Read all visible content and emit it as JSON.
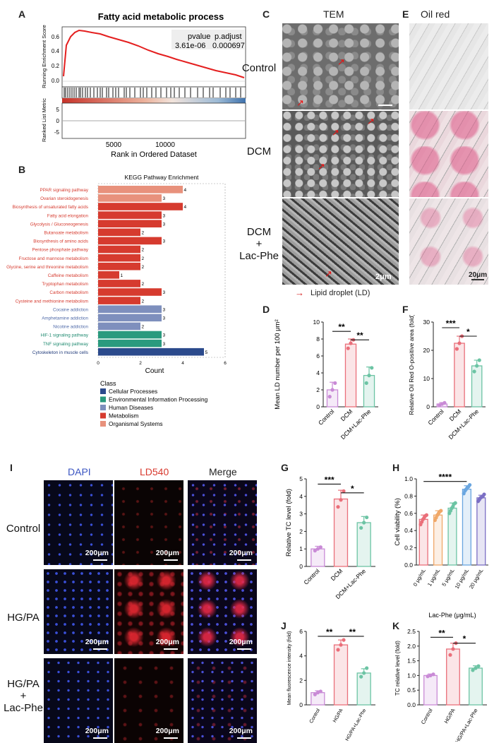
{
  "panels": {
    "A": {
      "letter": "A",
      "title": "Fatty acid metabolic process",
      "stats_header": [
        "pvalue",
        "p.adjust"
      ],
      "stats_values": [
        "3.61e-06",
        "0.000697"
      ],
      "ylabel_top": "Running Enrichment Score",
      "ylabel_bottom": "Ranked List Metric",
      "xlabel": "Rank in Ordered Dataset",
      "y_ticks_top": [
        "0.6",
        "0.4",
        "0.2",
        "0.0"
      ],
      "y_ticks_bottom": [
        "5",
        "0",
        "-5"
      ],
      "x_ticks": [
        "5000",
        "10000"
      ]
    },
    "B": {
      "letter": "B"
    },
    "C": {
      "letter": "C",
      "header": "TEM",
      "rows": [
        "Control",
        "DCM",
        "DCM",
        "+",
        "Lac-Phe"
      ],
      "scale": "2μm",
      "legend": "Lipid droplet (LD)"
    },
    "D": {
      "letter": "D"
    },
    "E": {
      "letter": "E",
      "header": "Oil red",
      "scale": "20μm"
    },
    "F": {
      "letter": "F"
    },
    "G": {
      "letter": "G"
    },
    "H": {
      "letter": "H"
    },
    "I": {
      "letter": "I",
      "headers": [
        "DAPI",
        "LD540",
        "Merge"
      ],
      "rows": [
        "Control",
        "HG/PA",
        "HG/PA",
        "+",
        "Lac-Phe"
      ],
      "scale": "200μm"
    },
    "J": {
      "letter": "J"
    },
    "K": {
      "letter": "K"
    }
  },
  "chart_data": [
    {
      "id": "B",
      "type": "bar",
      "orientation": "horizontal",
      "title": "KEGG Pathway Enrichment",
      "xlabel": "Count",
      "xlim": [
        0,
        6
      ],
      "x_ticks": [
        "0",
        "2",
        "4",
        "6"
      ],
      "categories": [
        "PPAR signaling pathway",
        "Ovarian steroidogenesis",
        "Biosynthesis of unsaturated fatty acids",
        "Fatty acid elongation",
        "Glycolysis / Gluconeogenesis",
        "Butanoate metabolism",
        "Biosynthesis of amino acids",
        "Pentose phosphate pathway",
        "Fructose and mannose metabolism",
        "Glycine, serine and threonine metabolism",
        "Caffeine metabolism",
        "Tryptophan metabolism",
        "Carbon metabolism",
        "Cysteine and methionine metabolism",
        "Cocaine addiction",
        "Amphetamine addiction",
        "Nicotine addiction",
        "HIF-1 signaling pathway",
        "TNF signaling pathway",
        "Cytoskeleton in muscle cells"
      ],
      "values": [
        4,
        3,
        4,
        3,
        3,
        2,
        3,
        2,
        2,
        2,
        1,
        2,
        3,
        2,
        3,
        3,
        2,
        3,
        3,
        5
      ],
      "value_labels": [
        "4",
        "3",
        "4",
        "3",
        "3",
        "2",
        "3",
        "2",
        "2",
        "2",
        "1",
        "2",
        "3",
        "2",
        "3",
        "3",
        "2",
        "3",
        "3",
        "5"
      ],
      "classes": [
        "Organismal Systems",
        "Organismal Systems",
        "Metabolism",
        "Metabolism",
        "Metabolism",
        "Metabolism",
        "Metabolism",
        "Metabolism",
        "Metabolism",
        "Metabolism",
        "Metabolism",
        "Metabolism",
        "Metabolism",
        "Metabolism",
        "Human Diseases",
        "Human Diseases",
        "Human Diseases",
        "Environmental Information Processing",
        "Environmental Information Processing",
        "Cellular Processes"
      ],
      "legend_title": "Class",
      "legend": [
        {
          "name": "Cellular Processes",
          "color": "#2b4a8c"
        },
        {
          "name": "Environmental Information Processing",
          "color": "#2a9a7e"
        },
        {
          "name": "Human Diseases",
          "color": "#7e8fbd"
        },
        {
          "name": "Metabolism",
          "color": "#d63b2f"
        },
        {
          "name": "Organismal Systems",
          "color": "#e8917c"
        }
      ]
    },
    {
      "id": "D",
      "type": "bar",
      "ylabel": "Mean LD number per 100 μm²",
      "ylim": [
        0,
        10
      ],
      "y_ticks": [
        "0",
        "2",
        "4",
        "6",
        "8",
        "10"
      ],
      "categories": [
        "Control",
        "DCM",
        "DCM+Lac-Phe"
      ],
      "values": [
        2.0,
        7.4,
        3.7
      ],
      "errors": [
        0.9,
        0.6,
        1.0
      ],
      "points": [
        [
          1.2,
          2.0,
          2.8
        ],
        [
          6.9,
          7.5,
          7.9
        ],
        [
          2.8,
          3.7,
          4.6
        ]
      ],
      "colors": [
        "#c98ad6",
        "#ea6f7a",
        "#6cc4a4"
      ],
      "sig": [
        {
          "from": 0,
          "to": 1,
          "label": "**",
          "level": 8.9
        },
        {
          "from": 1,
          "to": 2,
          "label": "**",
          "level": 7.9
        }
      ]
    },
    {
      "id": "F",
      "type": "bar",
      "ylabel": "Relative Oil Red O-positive area (fold)",
      "ylim": [
        0,
        30
      ],
      "y_ticks": [
        "0",
        "10",
        "20",
        "30"
      ],
      "categories": [
        "Control",
        "DCM",
        "DCM+Lac-Phe"
      ],
      "values": [
        1.0,
        22.5,
        14.5
      ],
      "errors": [
        0.5,
        2.5,
        2.0
      ],
      "points": [
        [
          0.6,
          1.0,
          1.4
        ],
        [
          20.5,
          22.5,
          25.0
        ],
        [
          12.5,
          14.5,
          16.5
        ]
      ],
      "colors": [
        "#c98ad6",
        "#ea6f7a",
        "#6cc4a4"
      ],
      "sig": [
        {
          "from": 0,
          "to": 1,
          "label": "***",
          "level": 28
        },
        {
          "from": 1,
          "to": 2,
          "label": "*",
          "level": 25
        }
      ]
    },
    {
      "id": "G",
      "type": "bar",
      "ylabel": "Relative TC level (fold)",
      "ylim": [
        0,
        5
      ],
      "y_ticks": [
        "0",
        "1",
        "2",
        "3",
        "4",
        "5"
      ],
      "categories": [
        "Control",
        "DCM",
        "DCM+Lac-Phe"
      ],
      "values": [
        1.0,
        3.85,
        2.5
      ],
      "errors": [
        0.15,
        0.5,
        0.35
      ],
      "points": [
        [
          0.9,
          1.0,
          1.1
        ],
        [
          3.4,
          3.8,
          4.3
        ],
        [
          2.2,
          2.5,
          2.8
        ]
      ],
      "colors": [
        "#c98ad6",
        "#ea6f7a",
        "#6cc4a4"
      ],
      "sig": [
        {
          "from": 0,
          "to": 1,
          "label": "***",
          "level": 4.7
        },
        {
          "from": 1,
          "to": 2,
          "label": "*",
          "level": 4.2
        }
      ]
    },
    {
      "id": "H",
      "type": "bar",
      "ylabel": "Cell viability (%)",
      "xlabel": "Lac-Phe (μg/mL)",
      "ylim": [
        0,
        1.0
      ],
      "y_ticks": [
        "0.0",
        "0.2",
        "0.4",
        "0.6",
        "0.8",
        "1.0"
      ],
      "categories": [
        "0 μg/mL",
        "1 μg/mL",
        "5 μg/mL",
        "10 μg/mL",
        "20 μg/mL"
      ],
      "values": [
        0.53,
        0.58,
        0.66,
        0.88,
        0.78
      ],
      "errors": [
        0.05,
        0.05,
        0.06,
        0.04,
        0.03
      ],
      "points": [
        [
          0.47,
          0.5,
          0.53,
          0.55,
          0.57,
          0.58
        ],
        [
          0.52,
          0.55,
          0.58,
          0.6,
          0.62,
          0.63
        ],
        [
          0.6,
          0.63,
          0.66,
          0.68,
          0.71,
          0.72
        ],
        [
          0.83,
          0.86,
          0.88,
          0.9,
          0.91,
          0.93
        ],
        [
          0.74,
          0.76,
          0.78,
          0.79,
          0.8,
          0.82
        ]
      ],
      "colors": [
        "#ea6f7a",
        "#f0a868",
        "#6cc4a4",
        "#6aa6e0",
        "#7b6fc4"
      ],
      "sig": [
        {
          "from": 0,
          "to": 3,
          "label": "****",
          "level": 0.97
        }
      ]
    },
    {
      "id": "J",
      "type": "bar",
      "ylabel": "Mean fluorescence intensity (fold)",
      "ylim": [
        0,
        6
      ],
      "y_ticks": [
        "0",
        "2",
        "4",
        "6"
      ],
      "categories": [
        "Control",
        "HG/PA",
        "HG/PA+Lac-Phe"
      ],
      "values": [
        1.0,
        4.9,
        2.6
      ],
      "errors": [
        0.15,
        0.4,
        0.35
      ],
      "points": [
        [
          0.85,
          1.0,
          1.1
        ],
        [
          4.5,
          4.9,
          5.3
        ],
        [
          2.3,
          2.6,
          3.0
        ]
      ],
      "colors": [
        "#c98ad6",
        "#ea6f7a",
        "#6cc4a4"
      ],
      "sig": [
        {
          "from": 0,
          "to": 1,
          "label": "**",
          "level": 5.6
        },
        {
          "from": 1,
          "to": 2,
          "label": "**",
          "level": 5.6
        }
      ]
    },
    {
      "id": "K",
      "type": "bar",
      "ylabel": "TC relative level (fold)",
      "ylim": [
        0,
        2.5
      ],
      "y_ticks": [
        "0.0",
        "0.5",
        "1.0",
        "1.5",
        "2.0",
        "2.5"
      ],
      "categories": [
        "Control",
        "HG/PA",
        "HG/PA+Lac-Phe"
      ],
      "values": [
        1.0,
        1.9,
        1.25
      ],
      "errors": [
        0.05,
        0.2,
        0.08
      ],
      "points": [
        [
          0.97,
          1.0,
          1.04
        ],
        [
          1.7,
          1.9,
          2.1
        ],
        [
          1.18,
          1.25,
          1.32
        ]
      ],
      "colors": [
        "#c98ad6",
        "#ea6f7a",
        "#6cc4a4"
      ],
      "sig": [
        {
          "from": 0,
          "to": 1,
          "label": "**",
          "level": 2.3
        },
        {
          "from": 1,
          "to": 2,
          "label": "*",
          "level": 2.1
        }
      ]
    }
  ]
}
